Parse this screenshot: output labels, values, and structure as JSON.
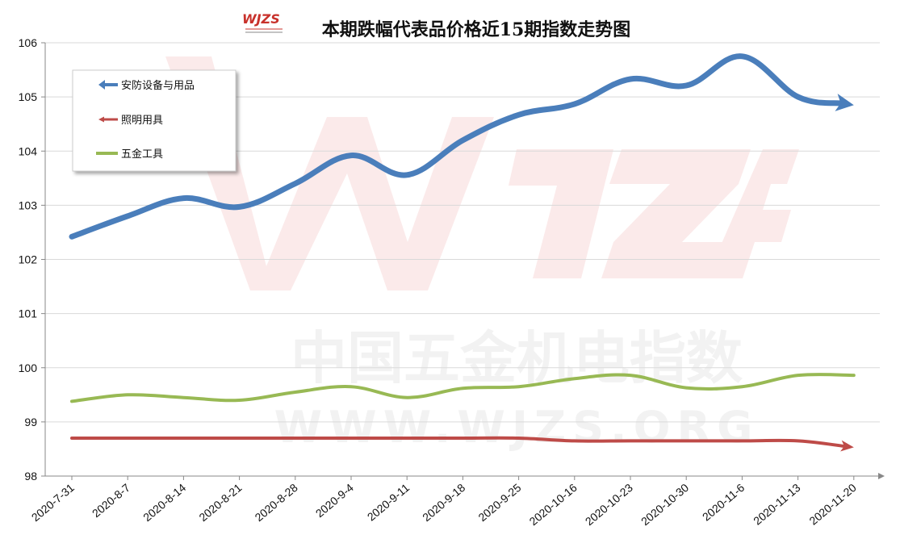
{
  "chart_data": {
    "type": "line",
    "title": "本期跌幅代表品价格近15期指数走势图",
    "categories": [
      "2020-7-31",
      "2020-8-7",
      "2020-8-14",
      "2020-8-21",
      "2020-8-28",
      "2020-9-4",
      "2020-9-11",
      "2020-9-18",
      "2020-9-25",
      "2020-10-16",
      "2020-10-23",
      "2020-10-30",
      "2020-11-6",
      "2020-11-13",
      "2020-11-20"
    ],
    "ylim": [
      98,
      106
    ],
    "yticks": [
      98,
      99,
      100,
      101,
      102,
      103,
      104,
      105,
      106
    ],
    "grid": true,
    "legend_position": "top-left",
    "series": [
      {
        "name": "安防设备与用品",
        "color": "#4a7ebb",
        "values": [
          102.42,
          102.8,
          103.13,
          102.97,
          103.4,
          103.92,
          103.56,
          104.2,
          104.67,
          104.87,
          105.33,
          105.21,
          105.75,
          105.0,
          104.85
        ]
      },
      {
        "name": "照明用具",
        "color": "#be4b48",
        "values": [
          98.7,
          98.7,
          98.7,
          98.7,
          98.7,
          98.7,
          98.7,
          98.7,
          98.7,
          98.65,
          98.65,
          98.65,
          98.65,
          98.65,
          98.53
        ]
      },
      {
        "name": "五金工具",
        "color": "#98b954",
        "values": [
          99.38,
          99.5,
          99.45,
          99.4,
          99.55,
          99.65,
          99.45,
          99.62,
          99.65,
          99.8,
          99.86,
          99.63,
          99.65,
          99.86,
          99.86
        ]
      }
    ]
  },
  "watermark": {
    "logo": "WJZS",
    "cn_text": "中国五金机电指数",
    "url_text": "WWW.WJZS.ORG",
    "color": "#e0564f"
  }
}
